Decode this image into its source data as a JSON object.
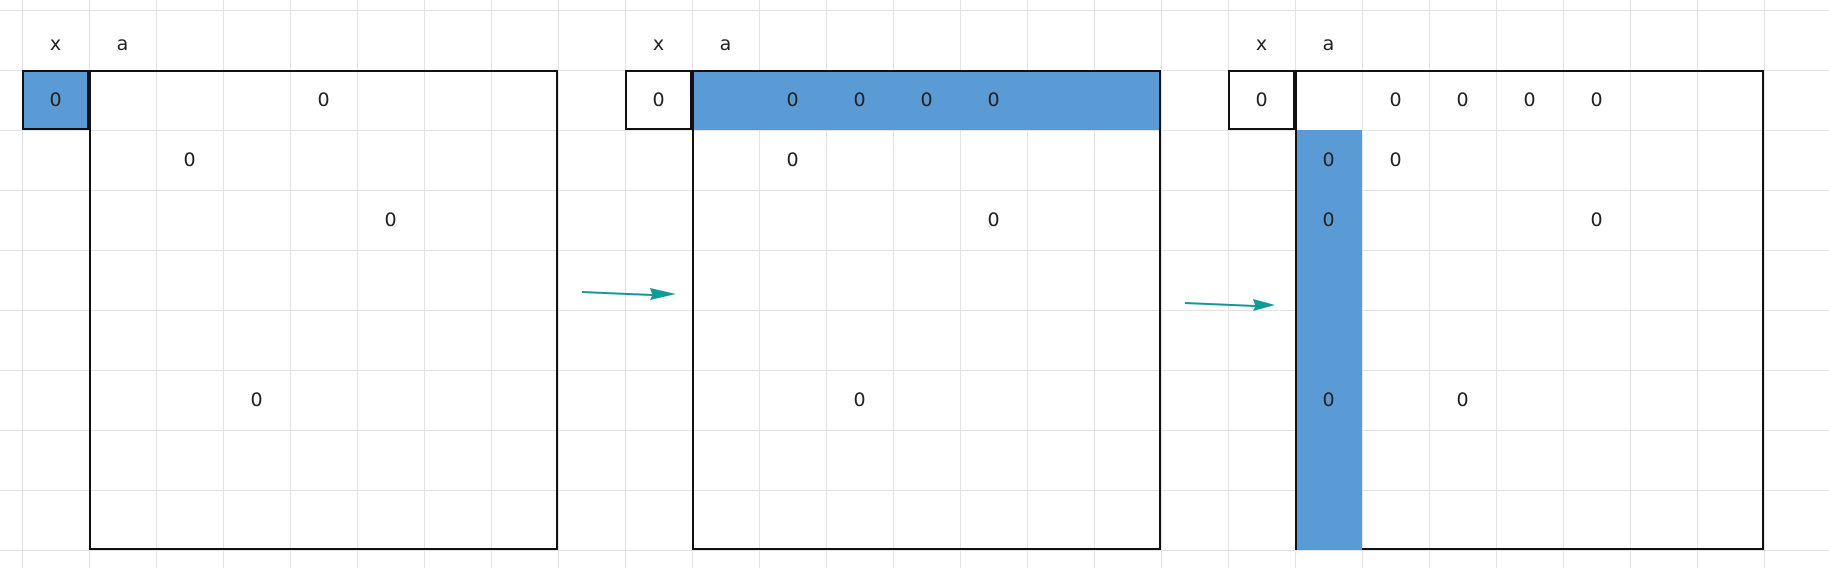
{
  "header": {
    "x_label": "x",
    "a_label": "a"
  },
  "accent_color": "#5b9bd5",
  "arrow_color": "#129a96",
  "panels": [
    {
      "x_value": "0",
      "highlight": "x-cell",
      "zeros": [
        {
          "row": 0,
          "col": 3,
          "v": "0"
        },
        {
          "row": 1,
          "col": 1,
          "v": "0"
        },
        {
          "row": 2,
          "col": 4,
          "v": "0"
        },
        {
          "row": 5,
          "col": 2,
          "v": "0"
        }
      ]
    },
    {
      "x_value": "0",
      "highlight": "first-row",
      "zeros": [
        {
          "row": 0,
          "col": 1,
          "v": "0"
        },
        {
          "row": 0,
          "col": 2,
          "v": "0"
        },
        {
          "row": 0,
          "col": 3,
          "v": "0"
        },
        {
          "row": 0,
          "col": 4,
          "v": "0"
        },
        {
          "row": 1,
          "col": 1,
          "v": "0"
        },
        {
          "row": 2,
          "col": 4,
          "v": "0"
        },
        {
          "row": 5,
          "col": 2,
          "v": "0"
        }
      ]
    },
    {
      "x_value": "0",
      "highlight": "first-column",
      "zeros": [
        {
          "row": 0,
          "col": 1,
          "v": "0"
        },
        {
          "row": 0,
          "col": 2,
          "v": "0"
        },
        {
          "row": 0,
          "col": 3,
          "v": "0"
        },
        {
          "row": 0,
          "col": 4,
          "v": "0"
        },
        {
          "row": 1,
          "col": 0,
          "v": "0"
        },
        {
          "row": 1,
          "col": 1,
          "v": "0"
        },
        {
          "row": 2,
          "col": 0,
          "v": "0"
        },
        {
          "row": 2,
          "col": 4,
          "v": "0"
        },
        {
          "row": 5,
          "col": 0,
          "v": "0"
        },
        {
          "row": 5,
          "col": 2,
          "v": "0"
        }
      ]
    }
  ]
}
